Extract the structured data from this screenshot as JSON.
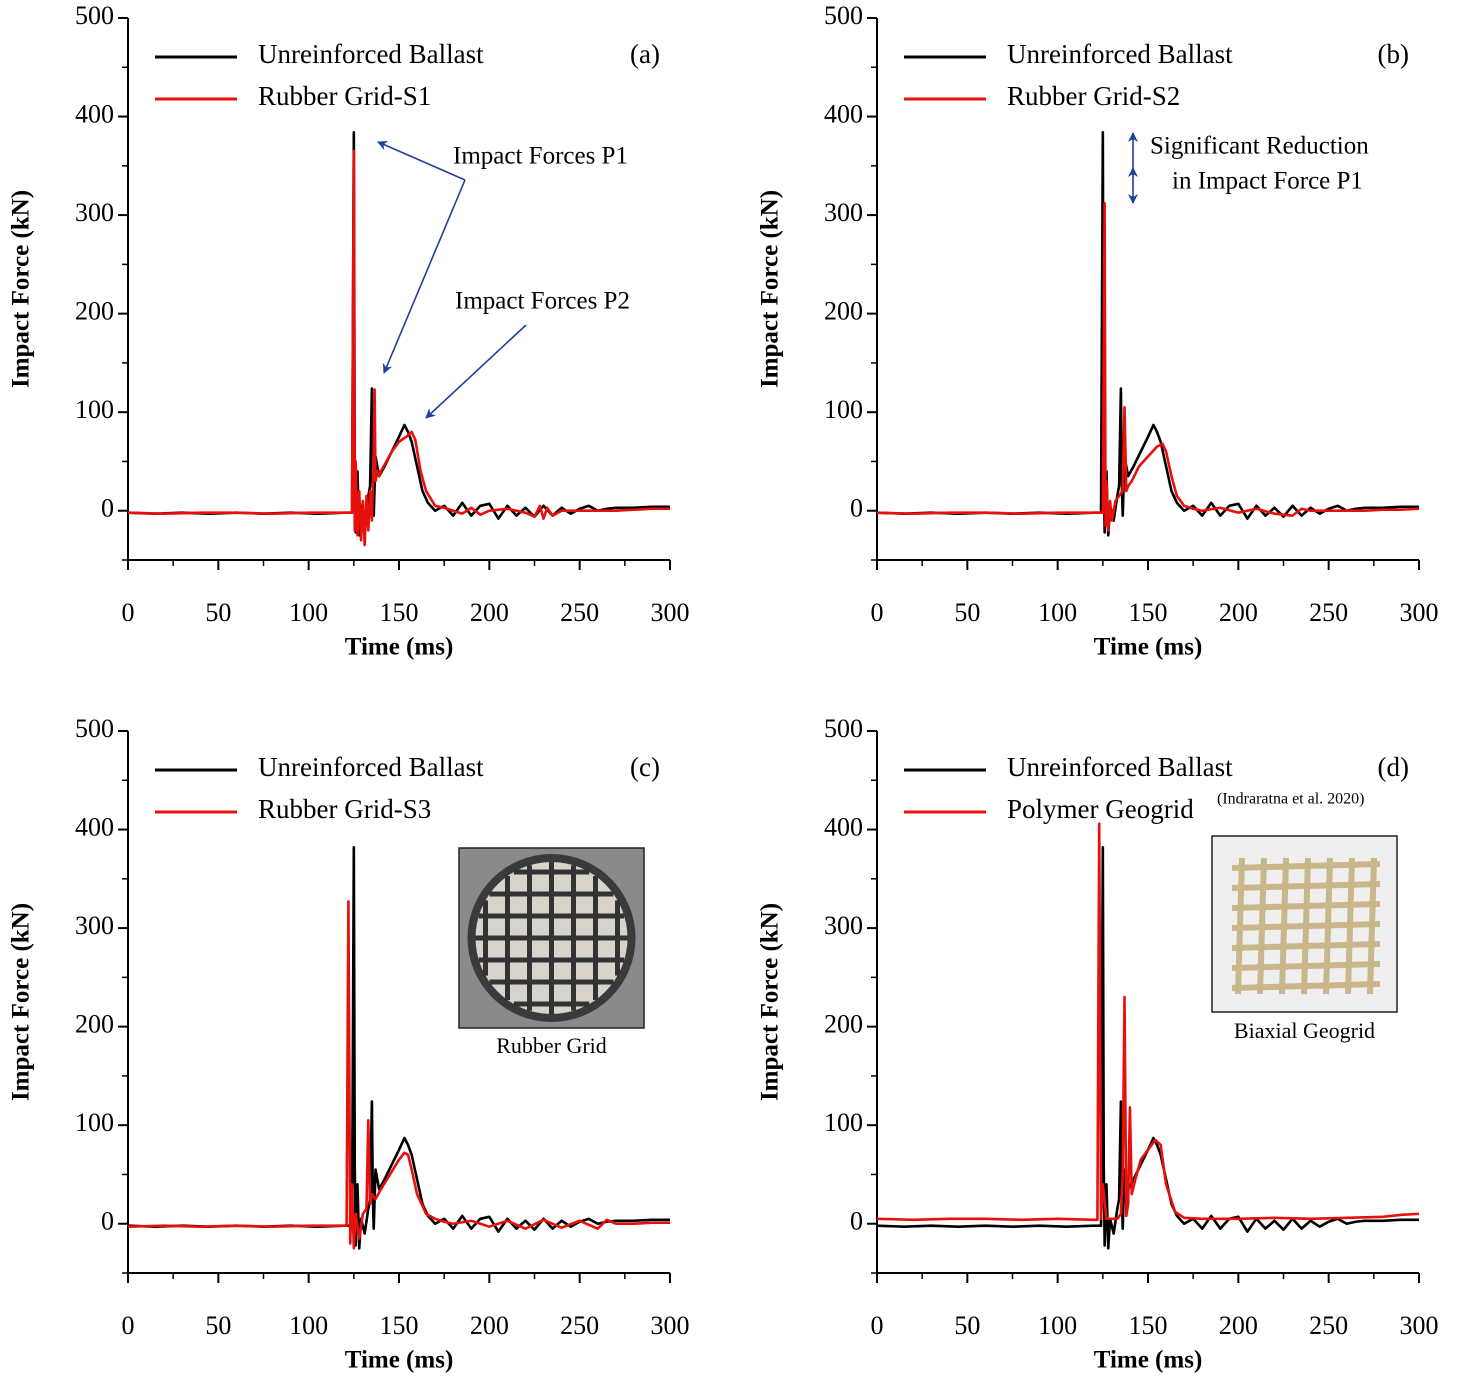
{
  "chart_data": [
    {
      "type": "line",
      "panel_label": "(a)",
      "xlabel": "Time (ms)",
      "ylabel": "Impact Force (kN)",
      "xlim": [
        0,
        300
      ],
      "xticks": [
        0,
        50,
        100,
        150,
        200,
        250,
        300
      ],
      "xminor": [
        25,
        75,
        125,
        175,
        225,
        275
      ],
      "ylim": [
        -50,
        500
      ],
      "yticks": [
        0,
        100,
        200,
        300,
        400,
        500
      ],
      "yminor": [
        -50,
        50,
        150,
        250,
        350,
        450
      ],
      "annotations": [
        "Impact Forces P1",
        "Impact Forces P2"
      ],
      "series": [
        {
          "name": "Unreinforced Ballast",
          "color": "#000000",
          "x": [
            0,
            15,
            30,
            45,
            60,
            75,
            90,
            105,
            120,
            124,
            125,
            125.5,
            126,
            127,
            128,
            129,
            131,
            133,
            134,
            135,
            135.5,
            136,
            137,
            139,
            142,
            146,
            150,
            153,
            155,
            157,
            160,
            163,
            166,
            170,
            175,
            180,
            185,
            190,
            195,
            200,
            205,
            210,
            215,
            220,
            225,
            230,
            235,
            240,
            245,
            250,
            255,
            260,
            265,
            270,
            280,
            290,
            300
          ],
          "values": [
            -2,
            -3,
            -2,
            -3,
            -2,
            -3,
            -2,
            -3,
            -2,
            -2,
            384,
            60,
            -22,
            40,
            -25,
            5,
            -10,
            15,
            25,
            124,
            30,
            -5,
            55,
            35,
            45,
            60,
            75,
            87,
            80,
            70,
            45,
            20,
            8,
            0,
            5,
            -5,
            8,
            -5,
            5,
            7,
            -8,
            5,
            -5,
            3,
            -6,
            5,
            -5,
            3,
            -3,
            2,
            5,
            0,
            2,
            3,
            3,
            4,
            4
          ]
        },
        {
          "name": "Rubber Grid-S1",
          "color": "#e8100c",
          "x": [
            0,
            20,
            40,
            60,
            80,
            100,
            120,
            124,
            125,
            125.5,
            126,
            127,
            128,
            129,
            130,
            131,
            132,
            133,
            134,
            135,
            136,
            136.5,
            137,
            138,
            139,
            140,
            143,
            146,
            150,
            154,
            157,
            159,
            162,
            165,
            170,
            175,
            180,
            185,
            190,
            195,
            200,
            210,
            220,
            225,
            228,
            230,
            232,
            235,
            240,
            250,
            260,
            270,
            280,
            290,
            300
          ],
          "values": [
            -2,
            -3,
            -2,
            -2,
            -3,
            -2,
            -2,
            -2,
            365,
            -20,
            50,
            -25,
            20,
            -30,
            10,
            -35,
            15,
            -20,
            20,
            -10,
            60,
            123,
            30,
            40,
            35,
            40,
            50,
            60,
            70,
            75,
            80,
            72,
            40,
            20,
            5,
            3,
            0,
            -3,
            3,
            -4,
            0,
            2,
            -2,
            -6,
            5,
            -8,
            3,
            -5,
            0,
            0,
            0,
            0,
            1,
            2,
            2
          ]
        }
      ]
    },
    {
      "type": "line",
      "panel_label": "(b)",
      "xlabel": "Time (ms)",
      "ylabel": "Impact Force (kN)",
      "xlim": [
        0,
        300
      ],
      "xticks": [
        0,
        50,
        100,
        150,
        200,
        250,
        300
      ],
      "xminor": [
        25,
        75,
        125,
        175,
        225,
        275
      ],
      "ylim": [
        -50,
        500
      ],
      "yticks": [
        0,
        100,
        200,
        300,
        400,
        500
      ],
      "yminor": [
        -50,
        50,
        150,
        250,
        350,
        450
      ],
      "annotations": [
        "Significant Reduction",
        "in Impact Force P1"
      ],
      "series": [
        {
          "name": "Unreinforced Ballast",
          "color": "#000000",
          "x": [
            0,
            15,
            30,
            45,
            60,
            75,
            90,
            105,
            120,
            124,
            125,
            125.5,
            126,
            127,
            128,
            129,
            131,
            133,
            134,
            135,
            135.5,
            136,
            137,
            139,
            142,
            146,
            150,
            153,
            155,
            157,
            160,
            163,
            166,
            170,
            175,
            180,
            185,
            190,
            195,
            200,
            205,
            210,
            215,
            220,
            225,
            230,
            235,
            240,
            245,
            250,
            255,
            260,
            265,
            270,
            280,
            290,
            300
          ],
          "values": [
            -2,
            -3,
            -2,
            -3,
            -2,
            -3,
            -2,
            -3,
            -2,
            -2,
            384,
            60,
            -22,
            40,
            -25,
            5,
            -10,
            15,
            25,
            124,
            30,
            -5,
            55,
            35,
            45,
            60,
            75,
            87,
            80,
            70,
            45,
            20,
            8,
            0,
            5,
            -5,
            8,
            -5,
            5,
            7,
            -8,
            5,
            -5,
            3,
            -6,
            5,
            -5,
            3,
            -3,
            2,
            5,
            0,
            2,
            3,
            3,
            4,
            4
          ]
        },
        {
          "name": "Rubber Grid-S2",
          "color": "#e8100c",
          "x": [
            0,
            20,
            40,
            60,
            80,
            100,
            120,
            125,
            126,
            126.5,
            127,
            128,
            129,
            130,
            132,
            134,
            136,
            137,
            138,
            139,
            141,
            145,
            150,
            155,
            158,
            160,
            163,
            166,
            170,
            175,
            180,
            190,
            200,
            210,
            220,
            230,
            235,
            240,
            250,
            260,
            270,
            280,
            290,
            300
          ],
          "values": [
            -2,
            -3,
            -2,
            -2,
            -3,
            -2,
            -2,
            -2,
            312,
            -15,
            30,
            -20,
            10,
            -10,
            10,
            15,
            20,
            105,
            20,
            25,
            30,
            45,
            55,
            65,
            68,
            60,
            35,
            15,
            5,
            2,
            0,
            3,
            -2,
            2,
            -3,
            -5,
            2,
            0,
            0,
            0,
            0,
            1,
            1,
            2
          ]
        }
      ]
    },
    {
      "type": "line",
      "panel_label": "(c)",
      "xlabel": "Time (ms)",
      "ylabel": "Impact Force (kN)",
      "xlim": [
        0,
        300
      ],
      "xticks": [
        0,
        50,
        100,
        150,
        200,
        250,
        300
      ],
      "xminor": [
        25,
        75,
        125,
        175,
        225,
        275
      ],
      "ylim": [
        -50,
        500
      ],
      "yticks": [
        0,
        100,
        200,
        300,
        400,
        500
      ],
      "yminor": [
        -50,
        50,
        150,
        250,
        350,
        450
      ],
      "inset_caption": "Rubber Grid",
      "series": [
        {
          "name": "Unreinforced Ballast",
          "color": "#000000",
          "x": [
            0,
            15,
            30,
            45,
            60,
            75,
            90,
            105,
            120,
            124,
            125,
            125.5,
            126,
            127,
            128,
            129,
            131,
            133,
            134,
            135,
            135.5,
            136,
            137,
            139,
            142,
            146,
            150,
            153,
            155,
            157,
            160,
            163,
            166,
            170,
            175,
            180,
            185,
            190,
            195,
            200,
            205,
            210,
            215,
            220,
            225,
            230,
            235,
            240,
            245,
            250,
            255,
            260,
            265,
            270,
            280,
            290,
            300
          ],
          "values": [
            -2,
            -3,
            -2,
            -3,
            -2,
            -3,
            -2,
            -3,
            -2,
            -2,
            382,
            60,
            -22,
            40,
            -25,
            5,
            -10,
            15,
            25,
            124,
            30,
            -5,
            55,
            35,
            45,
            60,
            75,
            87,
            80,
            70,
            45,
            20,
            8,
            0,
            5,
            -5,
            8,
            -5,
            5,
            7,
            -8,
            5,
            -5,
            3,
            -6,
            5,
            -5,
            3,
            -3,
            2,
            5,
            0,
            2,
            3,
            3,
            4,
            4
          ]
        },
        {
          "name": "Rubber Grid-S3",
          "color": "#e8100c",
          "x": [
            0,
            20,
            40,
            60,
            80,
            100,
            118,
            121,
            122,
            123,
            124,
            125,
            126,
            128,
            130,
            132,
            133,
            134,
            135,
            137,
            140,
            145,
            150,
            153,
            155,
            157,
            160,
            165,
            170,
            175,
            180,
            190,
            200,
            210,
            220,
            230,
            240,
            250,
            260,
            265,
            270,
            280,
            290,
            300
          ],
          "values": [
            -3,
            -2,
            -3,
            -2,
            -3,
            -2,
            -2,
            -2,
            327,
            -20,
            40,
            -25,
            10,
            -15,
            10,
            15,
            105,
            20,
            30,
            25,
            35,
            50,
            65,
            72,
            70,
            55,
            30,
            10,
            5,
            2,
            0,
            3,
            -3,
            3,
            -5,
            4,
            -4,
            3,
            -5,
            4,
            0,
            0,
            1,
            1
          ]
        }
      ]
    },
    {
      "type": "line",
      "panel_label": "(d)",
      "xlabel": "Time (ms)",
      "ylabel": "Impact Force (kN)",
      "xlim": [
        0,
        300
      ],
      "xticks": [
        0,
        50,
        100,
        150,
        200,
        250,
        300
      ],
      "xminor": [
        25,
        75,
        125,
        175,
        225,
        275
      ],
      "ylim": [
        -50,
        500
      ],
      "yticks": [
        0,
        100,
        200,
        300,
        400,
        500
      ],
      "yminor": [
        -50,
        50,
        150,
        250,
        350,
        450
      ],
      "inset_caption": "Biaxial Geogrid",
      "legend_note": "(Indraratna et al. 2020)",
      "series": [
        {
          "name": "Unreinforced Ballast",
          "color": "#000000",
          "x": [
            0,
            15,
            30,
            45,
            60,
            75,
            90,
            105,
            120,
            124,
            125,
            125.5,
            126,
            127,
            128,
            129,
            131,
            133,
            134,
            135,
            135.5,
            136,
            137,
            139,
            142,
            146,
            150,
            153,
            155,
            157,
            160,
            163,
            166,
            170,
            175,
            180,
            185,
            190,
            195,
            200,
            205,
            210,
            215,
            220,
            225,
            230,
            235,
            240,
            245,
            250,
            255,
            260,
            265,
            270,
            280,
            290,
            300
          ],
          "values": [
            -2,
            -3,
            -2,
            -3,
            -2,
            -3,
            -2,
            -3,
            -2,
            -2,
            382,
            60,
            -22,
            40,
            -25,
            5,
            -10,
            15,
            25,
            124,
            30,
            -5,
            55,
            35,
            45,
            60,
            75,
            87,
            80,
            70,
            45,
            20,
            8,
            0,
            5,
            -5,
            8,
            -5,
            5,
            7,
            -8,
            5,
            -5,
            3,
            -6,
            5,
            -5,
            3,
            -3,
            2,
            5,
            0,
            2,
            3,
            3,
            4,
            4
          ]
        },
        {
          "name": "Polymer Geogrid",
          "color": "#e8100c",
          "x": [
            0,
            20,
            40,
            60,
            80,
            100,
            120,
            122,
            123,
            124,
            125,
            127,
            130,
            133,
            135,
            136,
            137,
            138,
            139,
            140,
            141,
            143,
            146,
            150,
            154,
            157,
            160,
            165,
            170,
            180,
            200,
            220,
            240,
            260,
            280,
            290,
            300
          ],
          "values": [
            5,
            4,
            5,
            5,
            4,
            5,
            4,
            4,
            406,
            5,
            40,
            5,
            5,
            5,
            10,
            50,
            230,
            8,
            20,
            118,
            30,
            45,
            65,
            75,
            85,
            80,
            40,
            12,
            6,
            5,
            5,
            6,
            5,
            6,
            7,
            9,
            10
          ]
        }
      ]
    }
  ]
}
